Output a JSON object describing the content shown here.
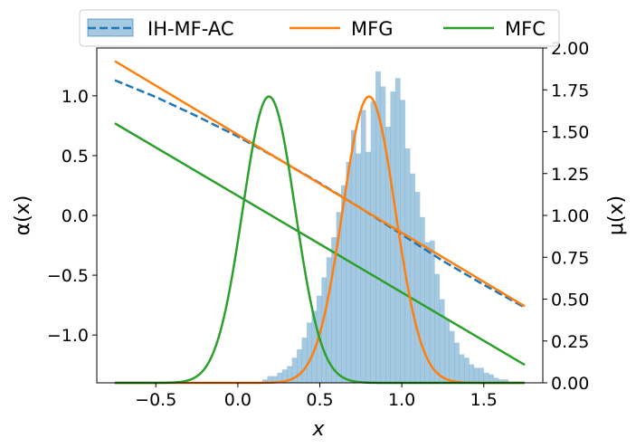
{
  "chart_data": {
    "type": "line",
    "title": "",
    "xlabel": "x",
    "ylabel_left": "α(x)",
    "ylabel_right": "μ(x)",
    "xlim": [
      -0.86,
      1.86
    ],
    "ylim_left": [
      -1.4,
      1.4
    ],
    "ylim_right": [
      0.0,
      2.0
    ],
    "x_ticks": [
      -0.5,
      0.0,
      0.5,
      1.0,
      1.5
    ],
    "x_tick_labels": [
      "−0.5",
      "0.0",
      "0.5",
      "1.0",
      "1.5"
    ],
    "y_left_ticks": [
      -1.0,
      -0.5,
      0.0,
      0.5,
      1.0
    ],
    "y_left_tick_labels": [
      "−1.0",
      "−0.5",
      "0.0",
      "0.5",
      "1.0"
    ],
    "y_right_ticks": [
      0.0,
      0.25,
      0.5,
      0.75,
      1.0,
      1.25,
      1.5,
      1.75,
      2.0
    ],
    "y_right_tick_labels": [
      "0.00",
      "0.25",
      "0.50",
      "0.75",
      "1.00",
      "1.25",
      "1.50",
      "1.75",
      "2.00"
    ],
    "grid": false,
    "legend": {
      "placement": "top-center-outside",
      "entries": [
        {
          "label": "IH-MF-AC",
          "color": "#1f77b4",
          "style": "dashed-with-patch"
        },
        {
          "label": "MFG",
          "color": "#ff7f0e",
          "style": "solid"
        },
        {
          "label": "MFC",
          "color": "#2ca02c",
          "style": "solid"
        }
      ]
    },
    "series": [
      {
        "name": "IH-MF-AC",
        "axis": "left",
        "color": "#1f77b4",
        "style": "dashed",
        "x": [
          -0.75,
          -0.5,
          -0.25,
          0.0,
          0.25,
          0.5,
          0.75,
          1.0,
          1.25,
          1.5,
          1.75
        ],
        "y": [
          1.13,
          0.99,
          0.83,
          0.66,
          0.47,
          0.27,
          0.06,
          -0.16,
          -0.38,
          -0.58,
          -0.77
        ]
      },
      {
        "name": "MFG",
        "axis": "left",
        "color": "#ff7f0e",
        "style": "solid",
        "x": [
          -0.75,
          1.75
        ],
        "y": [
          1.29,
          -0.76
        ]
      },
      {
        "name": "MFC",
        "axis": "left",
        "color": "#2ca02c",
        "style": "solid",
        "x": [
          -0.75,
          1.75
        ],
        "y": [
          0.77,
          -1.25
        ]
      },
      {
        "name": "MFG density",
        "axis": "right",
        "color": "#ff7f0e",
        "style": "solid",
        "kind": "gaussian",
        "mean": 0.8,
        "std": 0.16,
        "peak": 1.71,
        "x_range": [
          -0.75,
          1.75
        ]
      },
      {
        "name": "MFC density",
        "axis": "right",
        "color": "#2ca02c",
        "style": "solid",
        "kind": "gaussian",
        "mean": 0.19,
        "std": 0.16,
        "peak": 1.71,
        "x_range": [
          -0.75,
          1.75
        ]
      }
    ],
    "histogram": {
      "name": "IH-MF-AC",
      "axis": "right",
      "color": "#1f77b4",
      "opacity": 0.4,
      "bin_start": 0.15,
      "bin_width": 0.03,
      "counts": [
        0.02,
        0.04,
        0.04,
        0.06,
        0.08,
        0.1,
        0.15,
        0.2,
        0.27,
        0.36,
        0.43,
        0.52,
        0.63,
        0.75,
        0.87,
        1.02,
        1.18,
        1.32,
        1.51,
        1.37,
        1.63,
        1.38,
        1.68,
        1.86,
        1.77,
        1.53,
        1.74,
        1.82,
        1.69,
        1.4,
        1.25,
        1.14,
        0.99,
        0.84,
        0.85,
        0.65,
        0.5,
        0.38,
        0.31,
        0.24,
        0.17,
        0.15,
        0.11,
        0.09,
        0.09,
        0.06,
        0.05,
        0.03,
        0.02,
        0.02
      ]
    }
  }
}
